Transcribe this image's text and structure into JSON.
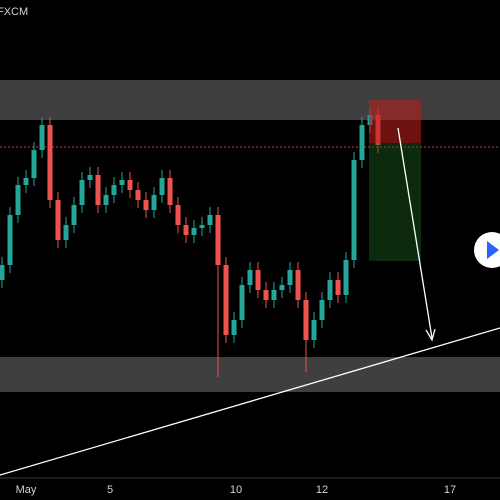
{
  "chart_data": {
    "type": "candlestick",
    "title": "FXCM",
    "up_color": "#26a69a",
    "down_color": "#ef5350",
    "xlim": [
      -0.25,
      62.25
    ],
    "xticks": [
      {
        "value": 3,
        "label": "May"
      },
      {
        "value": 13.5,
        "label": "5"
      },
      {
        "value": 29.25,
        "label": "10"
      },
      {
        "value": 40,
        "label": "12"
      },
      {
        "value": 56,
        "label": "17"
      }
    ],
    "ylim": [
      0,
      100
    ],
    "open": [
      44,
      47,
      57,
      63,
      64.4,
      70,
      75,
      60,
      52,
      55,
      59,
      64,
      65,
      59,
      61,
      63,
      64,
      62,
      60,
      58,
      61,
      64.4,
      59,
      55,
      53,
      54.4,
      55,
      57,
      47,
      33,
      36,
      43,
      46,
      42,
      40,
      42,
      43,
      46,
      40,
      32,
      36,
      40,
      44,
      41,
      48,
      68,
      75,
      77
    ],
    "high": [
      48.6,
      58.6,
      64.6,
      66,
      71.6,
      76.4,
      76.6,
      61.6,
      56.6,
      60.6,
      65.6,
      66.6,
      66.6,
      62.6,
      64.6,
      65.6,
      65.6,
      63.6,
      61.6,
      62.6,
      66,
      66,
      60.6,
      56.6,
      56,
      56.6,
      58.6,
      58.6,
      48.6,
      37.6,
      44.6,
      47.6,
      47.6,
      43.6,
      43.6,
      44.6,
      47.6,
      47.6,
      41.6,
      37.6,
      41.6,
      45.6,
      45.6,
      49.6,
      69.6,
      76.6,
      78.4,
      78.6
    ],
    "low": [
      42.4,
      45.4,
      55.4,
      61.4,
      62.8,
      68.4,
      58.4,
      50.4,
      50.4,
      53.4,
      57.4,
      62.4,
      57.4,
      57.4,
      59.4,
      61.4,
      60.4,
      58.4,
      56.4,
      56.4,
      59.4,
      57.4,
      53.4,
      51.4,
      51.4,
      52.8,
      53.4,
      24.6,
      31.4,
      31.4,
      34.4,
      41.4,
      40.4,
      38.4,
      38.4,
      40.4,
      41.4,
      38.4,
      25.6,
      30.4,
      34.4,
      38.4,
      39.4,
      39.4,
      46.4,
      66.4,
      73.4,
      69.4
    ],
    "close": [
      47,
      57,
      63,
      64.4,
      70,
      75,
      60,
      52,
      55,
      59,
      64,
      65,
      59,
      61,
      63,
      64,
      62,
      60,
      58,
      61,
      64.4,
      59,
      55,
      53,
      54.4,
      55,
      57,
      47,
      33,
      36,
      43,
      46,
      42,
      40,
      42,
      43,
      46,
      40,
      32,
      36,
      40,
      44,
      41,
      48,
      68,
      75,
      77,
      71
    ]
  }
}
